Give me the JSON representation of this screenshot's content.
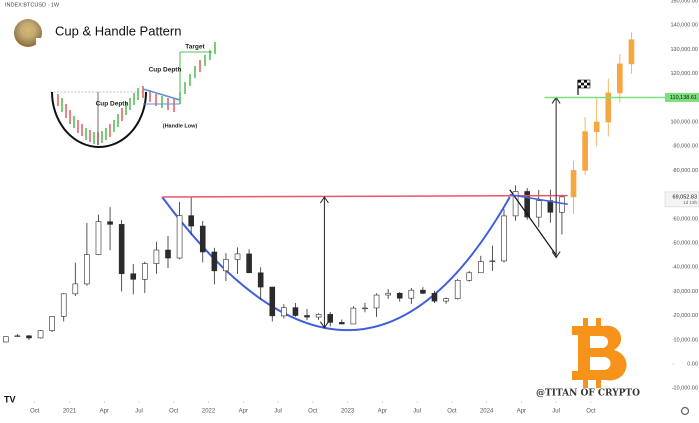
{
  "header": {
    "symbol": "INDEX:BTCUSD · 1W",
    "title": "Cup & Handle Pattern"
  },
  "inset": {
    "cup_depth": "Cup Depth",
    "cup_depth_2": "Cup Depth",
    "target": "Target",
    "handle_low": "(Handle Low)"
  },
  "watermark": "@TITAN OF CRYPTO",
  "chart_data": {
    "type": "candlestick",
    "x": [
      "2020-07",
      "2020-08",
      "2020-09",
      "2020-10",
      "2020-11",
      "2020-12",
      "2021-01",
      "2021-02",
      "2021-03",
      "2021-04",
      "2021-05",
      "2021-06",
      "2021-07",
      "2021-08",
      "2021-09",
      "2021-10",
      "2021-11",
      "2021-12",
      "2022-01",
      "2022-02",
      "2022-03",
      "2022-04",
      "2022-05",
      "2022-06",
      "2022-07",
      "2022-08",
      "2022-09",
      "2022-10",
      "2022-11",
      "2022-12",
      "2023-01",
      "2023-02",
      "2023-03",
      "2023-04",
      "2023-05",
      "2023-06",
      "2023-07",
      "2023-08",
      "2023-09",
      "2023-10",
      "2023-11",
      "2023-12",
      "2024-01",
      "2024-02",
      "2024-03",
      "2024-04",
      "2024-05",
      "2024-06",
      "2024-07"
    ],
    "open": [
      9100,
      11300,
      11650,
      10780,
      13800,
      19700,
      29000,
      33100,
      45200,
      58800,
      57700,
      37300,
      35000,
      41500,
      47100,
      43800,
      61300,
      57000,
      46300,
      38500,
      43200,
      45500,
      37700,
      31800,
      19900,
      23300,
      20050,
      19400,
      20500,
      17200,
      16550,
      23100,
      23150,
      28500,
      29250,
      27200,
      30500,
      29200,
      26000,
      27000,
      34600,
      37700,
      42300,
      42600,
      61200,
      71300,
      60700,
      67500,
      62700
    ],
    "high": [
      11400,
      12400,
      12000,
      14000,
      19800,
      29300,
      41900,
      58300,
      61700,
      64800,
      59500,
      41300,
      42300,
      50500,
      52900,
      67000,
      69000,
      59100,
      48000,
      45800,
      48200,
      47400,
      40000,
      31900,
      24700,
      25200,
      22800,
      21000,
      21500,
      18400,
      23900,
      25300,
      29200,
      31000,
      29800,
      31400,
      31800,
      30200,
      27500,
      35200,
      38400,
      44700,
      48900,
      64000,
      73800,
      72700,
      71900,
      72000,
      70000
    ],
    "low": [
      9000,
      11100,
      9900,
      10500,
      13200,
      17600,
      28100,
      32300,
      45000,
      47000,
      30000,
      28800,
      29300,
      37300,
      39600,
      43300,
      53300,
      42000,
      32900,
      34300,
      37200,
      37600,
      26700,
      17600,
      18800,
      19600,
      18100,
      18200,
      15500,
      16300,
      16500,
      21400,
      19500,
      26900,
      25800,
      24800,
      28900,
      25200,
      24900,
      26600,
      34100,
      37600,
      38500,
      41900,
      59200,
      59600,
      56500,
      58400,
      53500
    ],
    "close": [
      11300,
      11650,
      10780,
      13800,
      19700,
      29000,
      33100,
      45200,
      58800,
      57700,
      37300,
      35000,
      41500,
      47100,
      43800,
      61300,
      57000,
      46300,
      38500,
      43200,
      45500,
      37700,
      31800,
      19900,
      23300,
      20050,
      19400,
      20500,
      17200,
      16550,
      23100,
      23150,
      28500,
      29250,
      27200,
      30500,
      29200,
      26000,
      27000,
      34600,
      37700,
      42300,
      42600,
      61200,
      71300,
      60700,
      67500,
      62700,
      69052.83
    ],
    "up_color": "#ffffff",
    "down_color": "#2b2b2b",
    "wick_color": "#2b2b2b",
    "projection": {
      "x": [
        "2024-08",
        "2024-09",
        "2024-10",
        "2024-11",
        "2024-12",
        "2025-01"
      ],
      "open": [
        69052.83,
        80000,
        96000,
        100000,
        112000,
        124000
      ],
      "high": [
        84000,
        102000,
        110000,
        118000,
        128000,
        137000
      ],
      "low": [
        62000,
        78000,
        90000,
        94000,
        108000,
        120000
      ],
      "close": [
        80000,
        96000,
        100000,
        112000,
        124000,
        134000
      ],
      "color": "#f5a640"
    },
    "xlim": [
      "2020-07",
      "2025-05"
    ],
    "xticks": [
      {
        "value": "2020-10",
        "label": "Oct"
      },
      {
        "value": "2021-01",
        "label": "2021"
      },
      {
        "value": "2021-04",
        "label": "Apr"
      },
      {
        "value": "2021-07",
        "label": "Jul"
      },
      {
        "value": "2021-10",
        "label": "Oct"
      },
      {
        "value": "2022-01",
        "label": "2022"
      },
      {
        "value": "2022-04",
        "label": "Apr"
      },
      {
        "value": "2022-07",
        "label": "Jul"
      },
      {
        "value": "2022-10",
        "label": "Oct"
      },
      {
        "value": "2023-01",
        "label": "2023"
      },
      {
        "value": "2023-04",
        "label": "Apr"
      },
      {
        "value": "2023-07",
        "label": "Jul"
      },
      {
        "value": "2023-10",
        "label": "Oct"
      },
      {
        "value": "2024-01",
        "label": "2024"
      },
      {
        "value": "2024-04",
        "label": "Apr"
      },
      {
        "value": "2024-07",
        "label": "Jul"
      },
      {
        "value": "2024-10",
        "label": "Oct"
      }
    ],
    "ylim": [
      -12800,
      150400
    ],
    "yticks": [
      {
        "value": -10000,
        "label": "-10,000.00"
      },
      {
        "value": 0,
        "label": "0.00"
      },
      {
        "value": 10000,
        "label": "10,000.00"
      },
      {
        "value": 20000,
        "label": "20,000.00"
      },
      {
        "value": 30000,
        "label": "30,000.00"
      },
      {
        "value": 40000,
        "label": "40,000.00"
      },
      {
        "value": 50000,
        "label": "50,000.00"
      },
      {
        "value": 60000,
        "label": "60,000.00"
      },
      {
        "value": 80000,
        "label": "80,000.00"
      },
      {
        "value": 90000,
        "label": "90,000.00"
      },
      {
        "value": 100000,
        "label": "100,000.00"
      },
      {
        "value": 120000,
        "label": "120,000.00"
      },
      {
        "value": 130000,
        "label": "130,000.00"
      },
      {
        "value": 140000,
        "label": "140,000.00"
      },
      {
        "value": 150000,
        "label": "150,000.00"
      }
    ],
    "resistance": {
      "x": [
        "2021-09",
        "2024-08"
      ],
      "values": [
        69000,
        69600
      ],
      "color": "#e8566b"
    },
    "cup": {
      "x": [
        "2021-09",
        "2023-01",
        "2024-03"
      ],
      "values": [
        69000,
        14000,
        69000
      ],
      "color": "#3f5fdd"
    },
    "handle_low_line": {
      "x": [
        "2024-03",
        "2024-07"
      ],
      "values": [
        72000,
        45000
      ],
      "color": "#111111"
    },
    "handle_top_line": {
      "x": [
        "2024-03",
        "2024-08"
      ],
      "values": [
        70000,
        66000
      ],
      "color": "#3f5fdd"
    },
    "depth_arrow": {
      "x": "2022-11",
      "values": [
        15000,
        69000
      ]
    },
    "target_arrow": {
      "x": "2024-07",
      "values": [
        44000,
        110138.61
      ]
    },
    "target_line": {
      "x": "2024-06",
      "value": 110138.61,
      "label": "110,138.61",
      "color": "#7be07b"
    },
    "last_price": {
      "value": 69052.83,
      "label": "69,052.83",
      "countdown": "1d 13h"
    }
  }
}
